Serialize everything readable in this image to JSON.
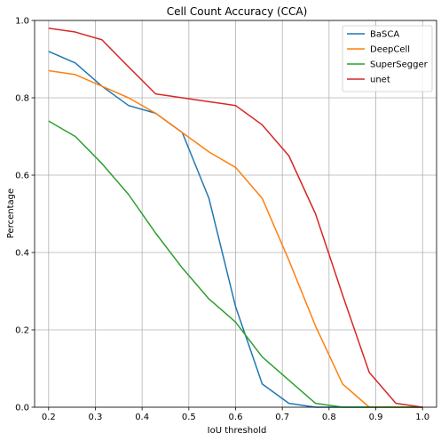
{
  "chart_data": {
    "type": "line",
    "title": "Cell Count Accuracy (CCA)",
    "xlabel": "IoU threshold",
    "ylabel": "Percentage",
    "xlim": [
      0.17,
      1.03
    ],
    "ylim": [
      0,
      1
    ],
    "xticks": [
      0.2,
      0.3,
      0.4,
      0.5,
      0.6,
      0.7,
      0.8,
      0.9,
      1.0
    ],
    "xtick_labels": [
      "0.2",
      "0.3",
      "0.4",
      "0.5",
      "0.6",
      "0.7",
      "0.8",
      "0.9",
      "1.0"
    ],
    "yticks": [
      0,
      0.2,
      0.4,
      0.6,
      0.8,
      1.0
    ],
    "ytick_labels": [
      "0.0",
      "0.2",
      "0.4",
      "0.6",
      "0.8",
      "1.0"
    ],
    "grid": true,
    "legend_position": "top-right",
    "x": [
      0.2,
      0.257,
      0.314,
      0.371,
      0.429,
      0.486,
      0.543,
      0.6,
      0.657,
      0.714,
      0.771,
      0.829,
      0.886,
      0.943,
      1.0
    ],
    "series": [
      {
        "name": "BaSCA",
        "color": "#1f77b4",
        "values": [
          0.92,
          0.89,
          0.83,
          0.78,
          0.76,
          0.71,
          0.54,
          0.26,
          0.06,
          0.01,
          0.0,
          0.0,
          0.0,
          0.0,
          0.0
        ]
      },
      {
        "name": "DeepCell",
        "color": "#ff7f0e",
        "values": [
          0.87,
          0.86,
          0.83,
          0.8,
          0.76,
          0.71,
          0.66,
          0.62,
          0.54,
          0.38,
          0.21,
          0.06,
          0.0,
          0.0,
          0.0
        ]
      },
      {
        "name": "SuperSegger",
        "color": "#2ca02c",
        "values": [
          0.74,
          0.7,
          0.63,
          0.55,
          0.45,
          0.36,
          0.28,
          0.22,
          0.13,
          0.07,
          0.01,
          0.0,
          0.0,
          0.0,
          0.0
        ]
      },
      {
        "name": "unet",
        "color": "#d62728",
        "values": [
          0.98,
          0.97,
          0.95,
          0.88,
          0.81,
          0.8,
          0.79,
          0.78,
          0.73,
          0.65,
          0.5,
          0.29,
          0.09,
          0.01,
          0.0
        ]
      }
    ]
  }
}
